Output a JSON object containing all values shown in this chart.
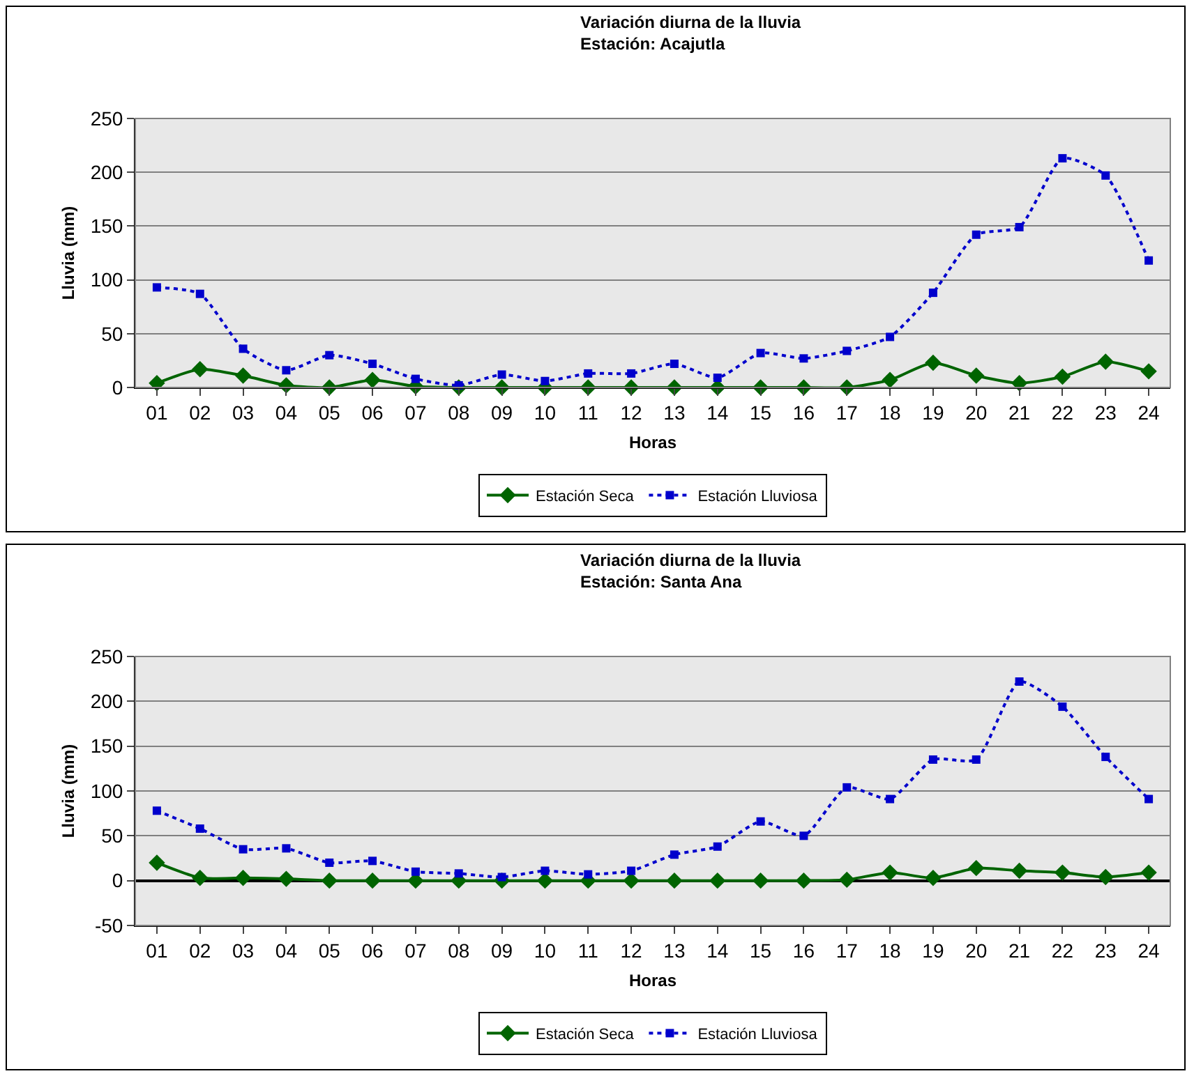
{
  "chart_data": [
    {
      "type": "line",
      "title": "Variación diurna de la lluvia",
      "subtitle": "Estación: Acajutla",
      "xlabel": "Horas",
      "ylabel": "Lluvia (mm)",
      "categories": [
        "01",
        "02",
        "03",
        "04",
        "05",
        "06",
        "07",
        "08",
        "09",
        "10",
        "11",
        "12",
        "13",
        "14",
        "15",
        "16",
        "17",
        "18",
        "19",
        "20",
        "21",
        "22",
        "23",
        "24"
      ],
      "series": [
        {
          "name": "Estación Seca",
          "color": "#006400",
          "marker": "diamond",
          "line_style": "solid",
          "values": [
            4,
            17,
            11,
            2,
            0,
            7,
            1,
            0,
            0,
            0,
            0,
            0,
            0,
            0,
            0,
            0,
            0,
            7,
            23,
            11,
            4,
            10,
            24,
            15
          ]
        },
        {
          "name": "Estación Lluviosa",
          "color": "#0000cc",
          "marker": "square",
          "line_style": "dotted",
          "values": [
            93,
            87,
            36,
            16,
            30,
            22,
            8,
            2,
            12,
            6,
            13,
            13,
            22,
            9,
            32,
            27,
            34,
            47,
            88,
            142,
            149,
            213,
            197,
            118
          ]
        }
      ],
      "ylim": [
        0,
        250
      ],
      "yticks": [
        0,
        50,
        100,
        150,
        200,
        250
      ],
      "grid": "y",
      "legend": "bottom"
    },
    {
      "type": "line",
      "title": "Variación diurna de la lluvia",
      "subtitle": "Estación: Santa Ana",
      "xlabel": "Horas",
      "ylabel": "Lluvia (mm)",
      "categories": [
        "01",
        "02",
        "03",
        "04",
        "05",
        "06",
        "07",
        "08",
        "09",
        "10",
        "11",
        "12",
        "13",
        "14",
        "15",
        "16",
        "17",
        "18",
        "19",
        "20",
        "21",
        "22",
        "23",
        "24"
      ],
      "series": [
        {
          "name": "Estación Seca",
          "color": "#006400",
          "marker": "diamond",
          "line_style": "solid",
          "values": [
            20,
            3,
            3,
            2,
            0,
            0,
            0,
            0,
            0,
            0,
            0,
            0,
            0,
            0,
            0,
            0,
            1,
            9,
            3,
            14,
            11,
            9,
            4,
            9
          ]
        },
        {
          "name": "Estación Lluviosa",
          "color": "#0000cc",
          "marker": "square",
          "line_style": "dotted",
          "values": [
            78,
            58,
            35,
            36,
            20,
            22,
            10,
            8,
            4,
            11,
            7,
            11,
            29,
            38,
            66,
            50,
            104,
            91,
            135,
            135,
            222,
            194,
            138,
            91
          ]
        }
      ],
      "ylim": [
        -50,
        250
      ],
      "yticks": [
        -50,
        0,
        50,
        100,
        150,
        200,
        250
      ],
      "grid": "y",
      "legend": "bottom"
    }
  ]
}
